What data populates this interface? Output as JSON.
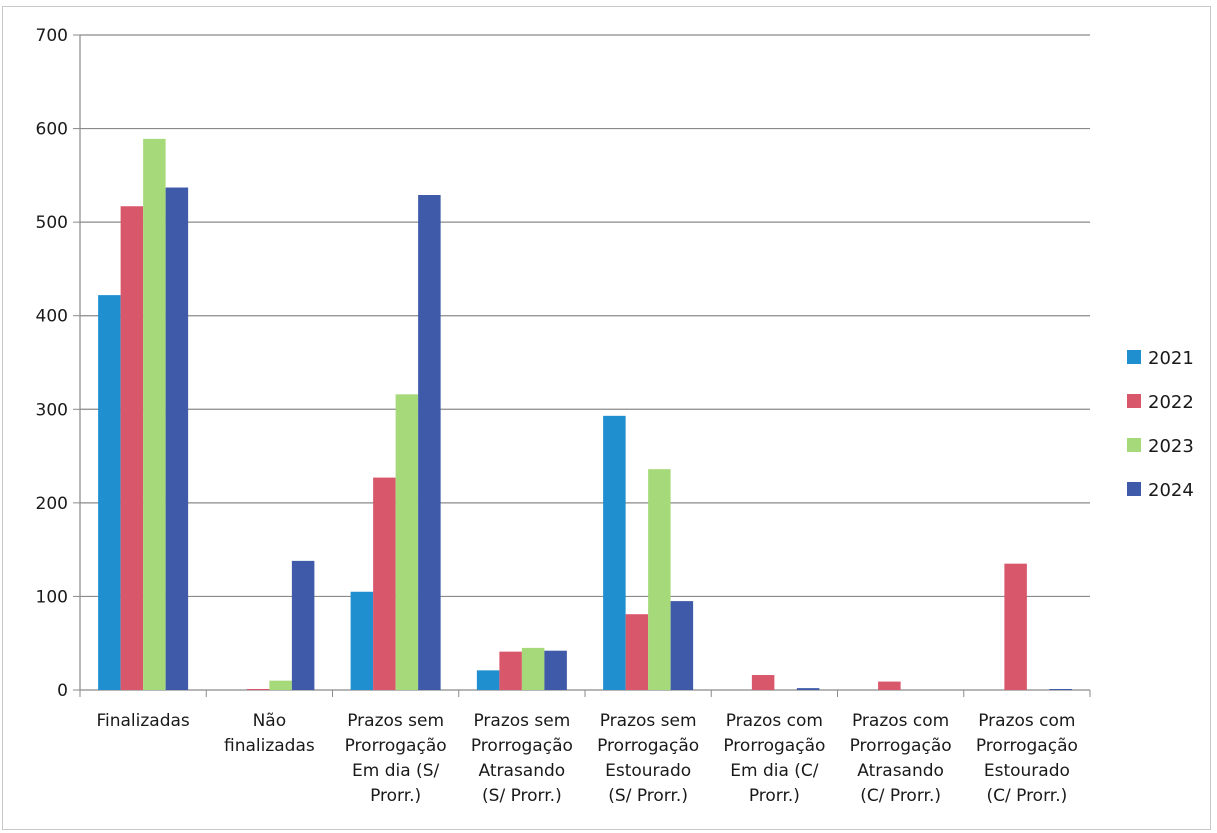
{
  "chart_data": {
    "type": "bar",
    "title": "",
    "xlabel": "",
    "ylabel": "",
    "ylim": [
      0,
      700
    ],
    "yticks": [
      0,
      100,
      200,
      300,
      400,
      500,
      600,
      700
    ],
    "grid": true,
    "legend_position": "right",
    "categories": [
      [
        "Finalizadas"
      ],
      [
        "Não",
        "finalizadas"
      ],
      [
        "Prazos sem",
        "Prorrogação",
        "Em dia (S/",
        "Prorr.)"
      ],
      [
        "Prazos sem",
        "Prorrogação",
        "Atrasando",
        "(S/ Prorr.)"
      ],
      [
        "Prazos sem",
        "Prorrogação",
        "Estourado",
        "(S/ Prorr.)"
      ],
      [
        "Prazos com",
        "Prorrogação",
        "Em dia (C/",
        "Prorr.)"
      ],
      [
        "Prazos com",
        "Prorrogação",
        "Atrasando",
        "(C/ Prorr.)"
      ],
      [
        "Prazos com",
        "Prorrogação",
        "Estourado",
        "(C/ Prorr.)"
      ]
    ],
    "series": [
      {
        "name": "2021",
        "color": "#1f8fd0",
        "values": [
          422,
          0,
          105,
          21,
          293,
          0,
          0,
          0
        ]
      },
      {
        "name": "2022",
        "color": "#d9576b",
        "values": [
          517,
          1,
          227,
          41,
          81,
          16,
          9,
          135
        ]
      },
      {
        "name": "2023",
        "color": "#a6d97a",
        "values": [
          589,
          10,
          316,
          45,
          236,
          0,
          0,
          0
        ]
      },
      {
        "name": "2024",
        "color": "#3f5aa8",
        "values": [
          537,
          138,
          529,
          42,
          95,
          2,
          0,
          1
        ]
      }
    ]
  }
}
